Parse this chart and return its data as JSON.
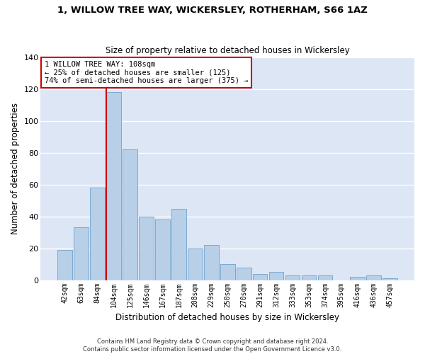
{
  "title1": "1, WILLOW TREE WAY, WICKERSLEY, ROTHERHAM, S66 1AZ",
  "title2": "Size of property relative to detached houses in Wickersley",
  "xlabel": "Distribution of detached houses by size in Wickersley",
  "ylabel": "Number of detached properties",
  "categories": [
    "42sqm",
    "63sqm",
    "84sqm",
    "104sqm",
    "125sqm",
    "146sqm",
    "167sqm",
    "187sqm",
    "208sqm",
    "229sqm",
    "250sqm",
    "270sqm",
    "291sqm",
    "312sqm",
    "333sqm",
    "353sqm",
    "374sqm",
    "395sqm",
    "416sqm",
    "436sqm",
    "457sqm"
  ],
  "values": [
    19,
    33,
    58,
    118,
    82,
    40,
    38,
    45,
    20,
    22,
    10,
    8,
    4,
    5,
    3,
    3,
    3,
    0,
    2,
    3,
    1
  ],
  "bar_color": "#b8cfe8",
  "bar_edge_color": "#7baad0",
  "background_color": "#dce6f5",
  "grid_color": "#ffffff",
  "reference_line_color": "#cc0000",
  "annotation_text": "1 WILLOW TREE WAY: 108sqm\n← 25% of detached houses are smaller (125)\n74% of semi-detached houses are larger (375) →",
  "annotation_box_color": "#ffffff",
  "annotation_box_edge": "#cc0000",
  "footer1": "Contains HM Land Registry data © Crown copyright and database right 2024.",
  "footer2": "Contains public sector information licensed under the Open Government Licence v3.0.",
  "ylim": [
    0,
    140
  ],
  "yticks": [
    0,
    20,
    40,
    60,
    80,
    100,
    120,
    140
  ]
}
